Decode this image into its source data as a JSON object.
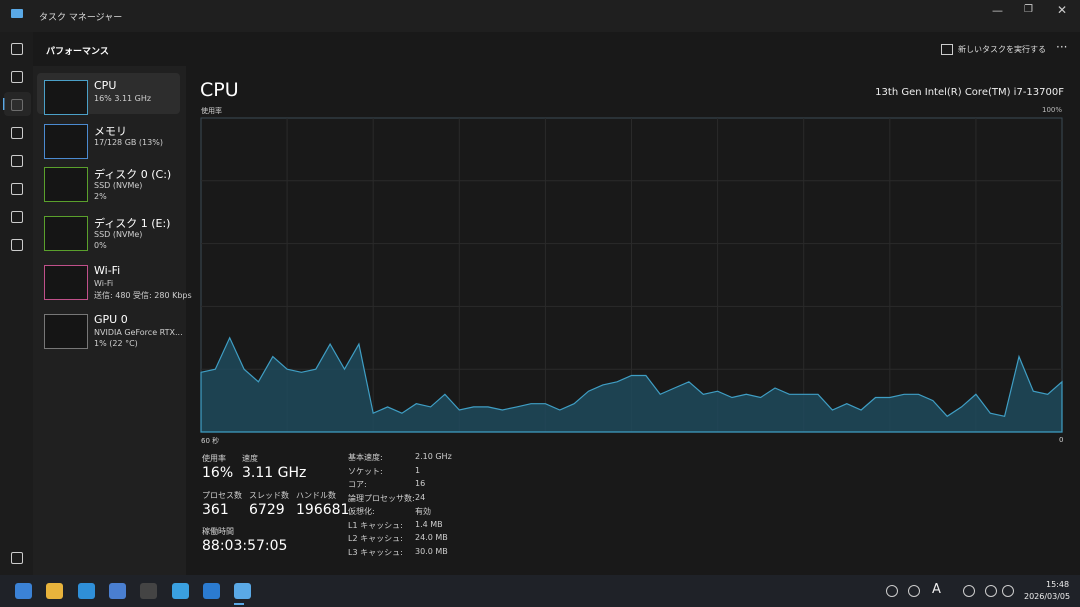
{
  "window": {
    "title": "タスク マネージャー"
  },
  "header": {
    "title": "パフォーマンス",
    "run_task": "新しいタスクを実行する"
  },
  "sidebar": [
    {
      "name": "CPU",
      "lines": [
        "16% 3.11 GHz"
      ]
    },
    {
      "name": "メモリ",
      "lines": [
        "17/128 GB (13%)"
      ]
    },
    {
      "name": "ディスク 0 (C:)",
      "lines": [
        "SSD (NVMe)",
        "2%"
      ]
    },
    {
      "name": "ディスク 1 (E:)",
      "lines": [
        "SSD (NVMe)",
        "0%"
      ]
    },
    {
      "name": "Wi-Fi",
      "lines": [
        "Wi-Fi",
        "送信: 480 受信: 280 Kbps"
      ]
    },
    {
      "name": "GPU 0",
      "lines": [
        "NVIDIA GeForce RTX...",
        "1% (22 °C)"
      ]
    }
  ],
  "main": {
    "title": "CPU",
    "model": "13th Gen Intel(R) Core(TM) i7-13700F"
  },
  "graph": {
    "label": "使用率",
    "x_label": "60 秒",
    "x_end": "0",
    "ylim": [
      0,
      100
    ],
    "yticks": [
      {
        "value": 100,
        "label": "100%"
      }
    ],
    "values": [
      19,
      20,
      30,
      20,
      16,
      24,
      20,
      19,
      20,
      28,
      20,
      28,
      6,
      8,
      6,
      9,
      8,
      12,
      7,
      8,
      8,
      7,
      8,
      9,
      9,
      7,
      9,
      13,
      15,
      16,
      18,
      18,
      12,
      14,
      16,
      12,
      13,
      11,
      12,
      11,
      14,
      12,
      12,
      12,
      7,
      9,
      7,
      11,
      11,
      12,
      12,
      10,
      5,
      8,
      12,
      6,
      5,
      24,
      13,
      12,
      16
    ]
  },
  "stats": {
    "primary": [
      {
        "label": "使用率",
        "value": "16%"
      },
      {
        "label": "速度",
        "value": "3.11 GHz"
      },
      {
        "label": "プロセス数",
        "value": "361"
      },
      {
        "label": "スレッド数",
        "value": "6729"
      },
      {
        "label": "ハンドル数",
        "value": "196681"
      },
      {
        "label": "稼働時間",
        "value": "88:03:57:05"
      }
    ],
    "details": [
      {
        "label": "基本速度:",
        "value": "2.10 GHz"
      },
      {
        "label": "ソケット:",
        "value": "1"
      },
      {
        "label": "コア:",
        "value": "16"
      },
      {
        "label": "論理プロセッサ数:",
        "value": "24"
      },
      {
        "label": "仮想化:",
        "value": "有効"
      },
      {
        "label": "L1 キャッシュ:",
        "value": "1.4 MB"
      },
      {
        "label": "L2 キャッシュ:",
        "value": "24.0 MB"
      },
      {
        "label": "L3 キャッシュ:",
        "value": "30.0 MB"
      }
    ]
  },
  "taskbar": {
    "ime": "A",
    "time": "15:48",
    "date": "2026/03/05"
  }
}
